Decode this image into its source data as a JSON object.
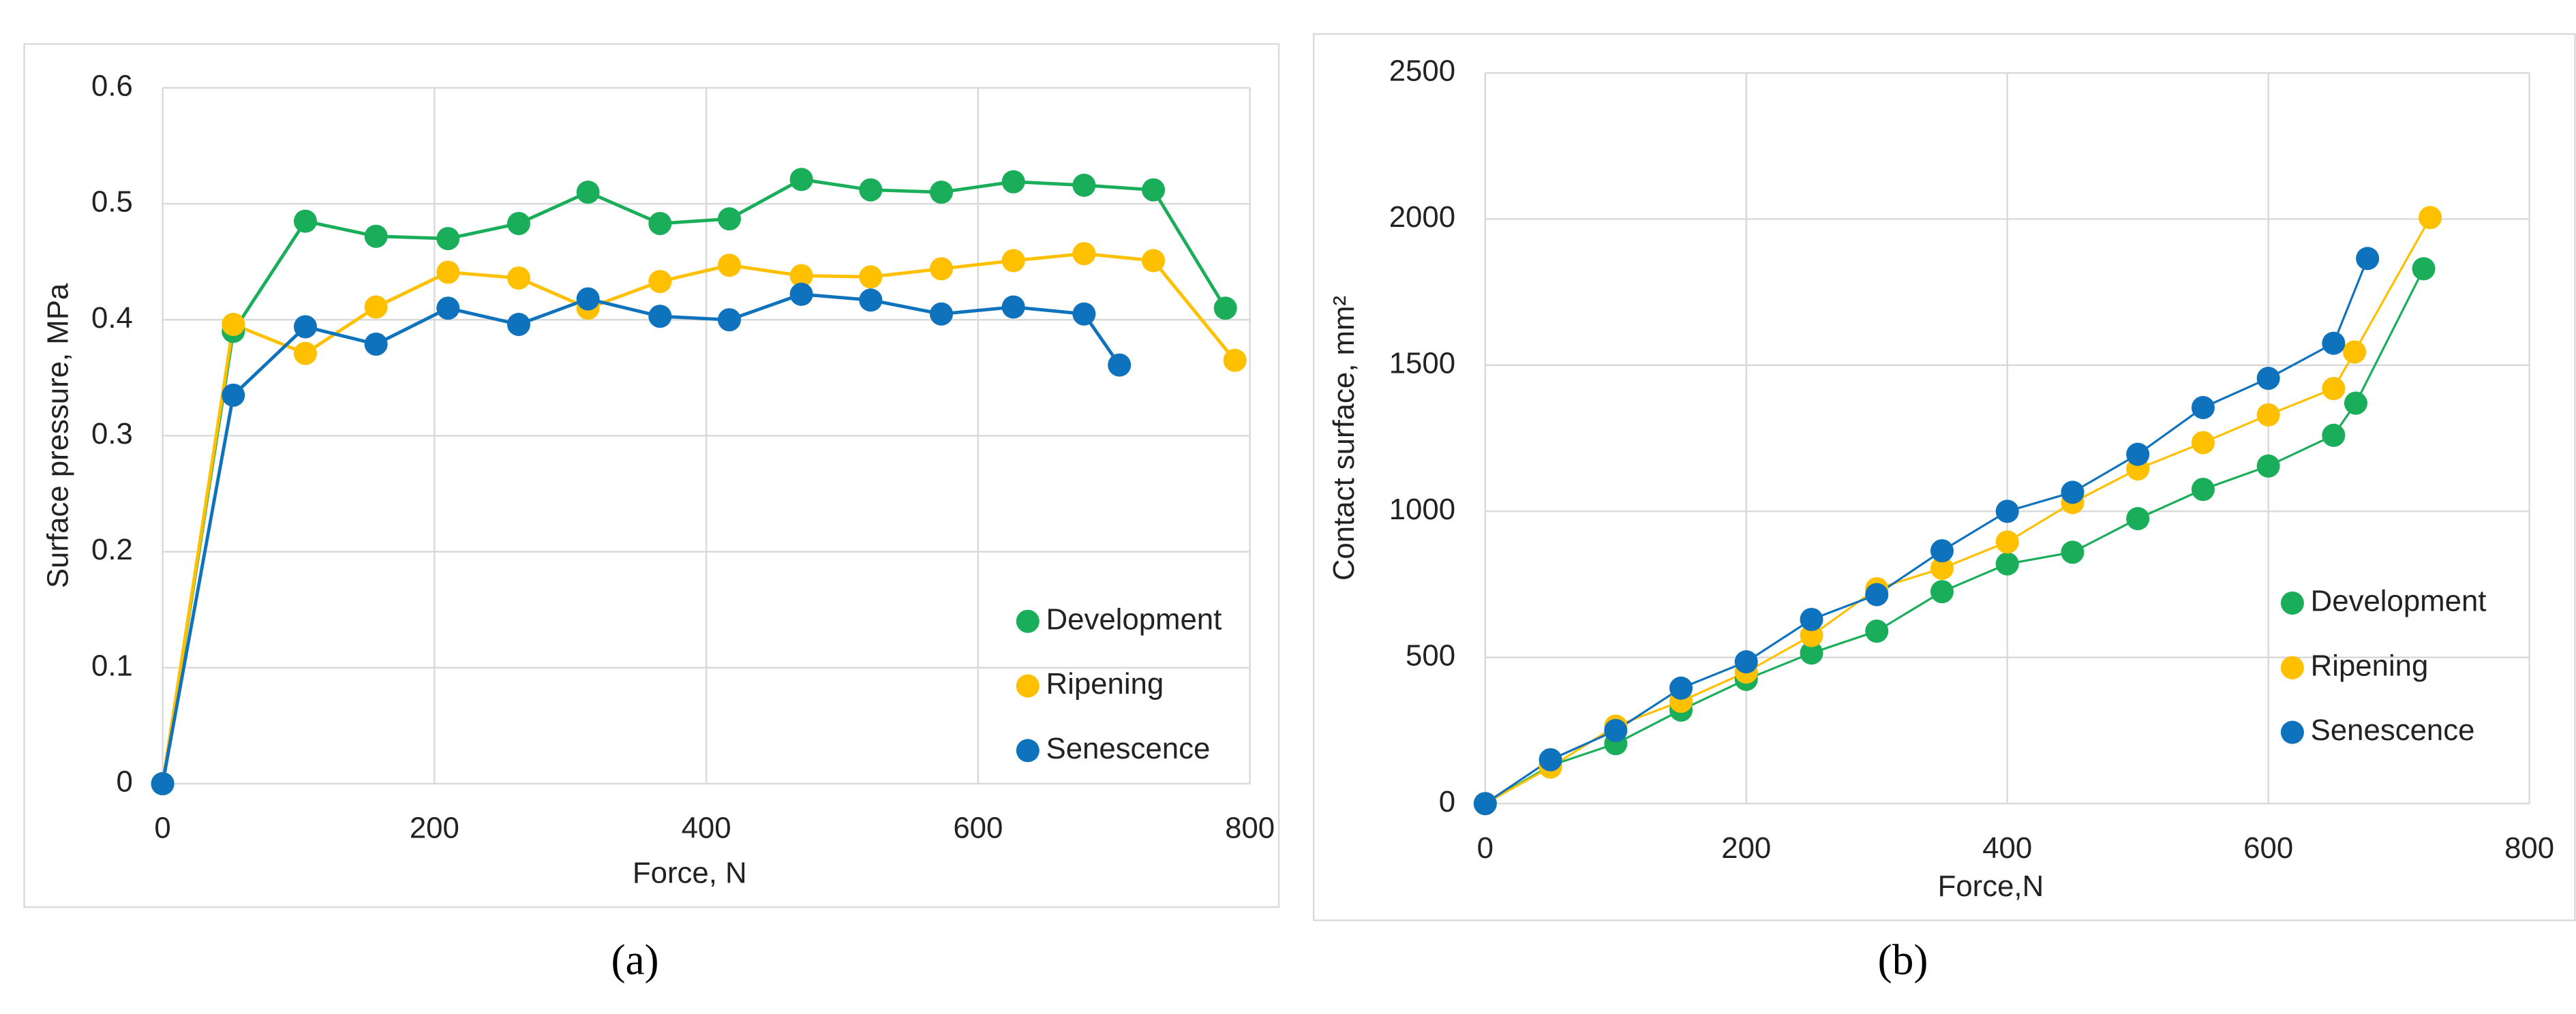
{
  "chart_data": [
    {
      "type": "line",
      "caption": "(a)",
      "x_label": "Force, N",
      "y_label": "Surface pressure, MPa",
      "xlim": [
        0,
        800
      ],
      "xticks": [
        0,
        200,
        400,
        600,
        800
      ],
      "ylim": [
        0,
        0.6
      ],
      "yticks": [
        0,
        0.1,
        0.2,
        0.3,
        0.4,
        0.5,
        0.6
      ],
      "grid": true,
      "legend": "lower right",
      "series": [
        {
          "name": "Development",
          "color": "#1aae5a",
          "x": [
            0,
            52,
            105,
            157,
            210,
            262,
            313,
            366,
            417,
            470,
            521,
            573,
            626,
            678,
            729,
            782
          ],
          "values": [
            0,
            0.39,
            0.485,
            0.472,
            0.47,
            0.483,
            0.51,
            0.483,
            0.487,
            0.521,
            0.512,
            0.51,
            0.519,
            0.516,
            0.512,
            0.41
          ]
        },
        {
          "name": "Ripening",
          "color": "#ffc000",
          "x": [
            0,
            52,
            105,
            157,
            210,
            262,
            313,
            366,
            417,
            470,
            521,
            573,
            626,
            678,
            729,
            789
          ],
          "values": [
            0,
            0.396,
            0.371,
            0.411,
            0.441,
            0.436,
            0.41,
            0.433,
            0.447,
            0.438,
            0.437,
            0.444,
            0.451,
            0.457,
            0.451,
            0.365
          ]
        },
        {
          "name": "Senescence",
          "color": "#0f72bd",
          "x": [
            0,
            52,
            105,
            157,
            210,
            262,
            313,
            366,
            417,
            470,
            521,
            573,
            626,
            678,
            704
          ],
          "values": [
            0,
            0.335,
            0.394,
            0.379,
            0.41,
            0.396,
            0.418,
            0.403,
            0.4,
            0.422,
            0.417,
            0.405,
            0.411,
            0.405,
            0.361
          ]
        }
      ]
    },
    {
      "type": "line",
      "caption": "(b)",
      "x_label": "Force,N",
      "y_label": "Contact surface, mm²",
      "xlim": [
        0,
        800
      ],
      "xticks": [
        0,
        200,
        400,
        600,
        800
      ],
      "ylim": [
        0,
        2500
      ],
      "yticks": [
        0,
        500,
        1000,
        1500,
        2000,
        2500
      ],
      "grid": true,
      "legend": "lower right",
      "series": [
        {
          "name": "Development",
          "color": "#1aae5a",
          "x": [
            0,
            50,
            100,
            150,
            200,
            250,
            300,
            350,
            400,
            450,
            500,
            550,
            600,
            650,
            667,
            719
          ],
          "values": [
            0,
            130,
            205,
            320,
            425,
            515,
            590,
            725,
            820,
            860,
            975,
            1075,
            1155,
            1260,
            1370,
            1830
          ]
        },
        {
          "name": "Ripening",
          "color": "#ffc000",
          "x": [
            0,
            50,
            100,
            150,
            200,
            250,
            300,
            350,
            400,
            450,
            500,
            550,
            600,
            650,
            666,
            724
          ],
          "values": [
            0,
            125,
            265,
            350,
            450,
            575,
            735,
            805,
            895,
            1030,
            1145,
            1235,
            1330,
            1420,
            1545,
            2005
          ]
        },
        {
          "name": "Senescence",
          "color": "#0f72bd",
          "x": [
            0,
            50,
            100,
            150,
            200,
            250,
            300,
            350,
            400,
            450,
            500,
            550,
            600,
            650,
            676
          ],
          "values": [
            0,
            150,
            250,
            395,
            485,
            630,
            715,
            865,
            1000,
            1065,
            1195,
            1355,
            1455,
            1575,
            1865
          ]
        }
      ]
    }
  ]
}
